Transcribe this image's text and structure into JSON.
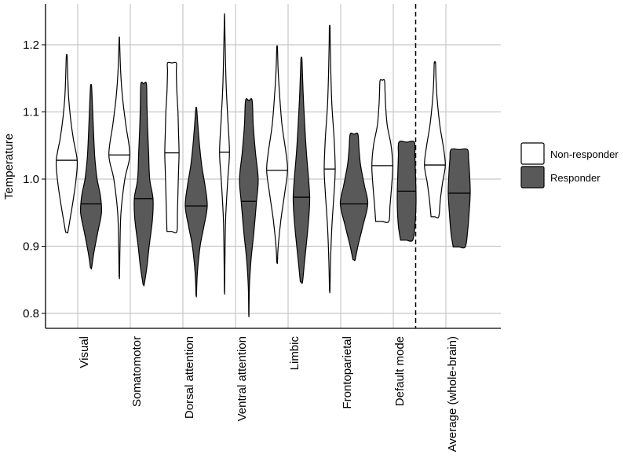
{
  "chart_data": {
    "type": "violin",
    "ylabel": "Temperature",
    "xlabel": "",
    "ylim": [
      0.775,
      1.26
    ],
    "yticks": [
      0.8,
      0.9,
      1.0,
      1.1,
      1.2
    ],
    "ytick_labels": [
      "0.8",
      "0.9",
      "1.0",
      "1.1",
      "1.2"
    ],
    "grid": true,
    "legend_position": "right",
    "series": [
      {
        "name": "Non-responder",
        "color": "#ffffff"
      },
      {
        "name": "Responder",
        "color": "#595959"
      }
    ],
    "separator_after_category": "Default mode",
    "categories": [
      {
        "label": "Visual",
        "non_responder": {
          "min": 0.921,
          "max": 1.183,
          "median": 1.028,
          "density": [
            [
              0.921,
              0.1
            ],
            [
              0.94,
              0.3
            ],
            [
              0.97,
              0.6
            ],
            [
              1.0,
              0.85
            ],
            [
              1.028,
              0.95
            ],
            [
              1.06,
              0.6
            ],
            [
              1.09,
              0.35
            ],
            [
              1.12,
              0.18
            ],
            [
              1.15,
              0.1
            ],
            [
              1.183,
              0.04
            ]
          ]
        },
        "responder": {
          "min": 0.868,
          "max": 1.138,
          "median": 0.963,
          "density": [
            [
              0.868,
              0.05
            ],
            [
              0.89,
              0.25
            ],
            [
              0.92,
              0.6
            ],
            [
              0.95,
              0.95
            ],
            [
              0.975,
              0.85
            ],
            [
              1.0,
              0.55
            ],
            [
              1.03,
              0.35
            ],
            [
              1.06,
              0.25
            ],
            [
              1.1,
              0.15
            ],
            [
              1.138,
              0.05
            ]
          ]
        }
      },
      {
        "label": "Somatomotor",
        "non_responder": {
          "min": 0.855,
          "max": 1.208,
          "median": 1.036,
          "density": [
            [
              0.855,
              0.02
            ],
            [
              0.9,
              0.06
            ],
            [
              0.95,
              0.15
            ],
            [
              1.0,
              0.5
            ],
            [
              1.036,
              0.95
            ],
            [
              1.08,
              0.6
            ],
            [
              1.12,
              0.3
            ],
            [
              1.16,
              0.12
            ],
            [
              1.208,
              0.02
            ]
          ]
        },
        "responder": {
          "min": 0.843,
          "max": 1.142,
          "median": 0.971,
          "density": [
            [
              0.843,
              0.05
            ],
            [
              0.87,
              0.3
            ],
            [
              0.9,
              0.5
            ],
            [
              0.94,
              0.8
            ],
            [
              0.971,
              0.85
            ],
            [
              1.0,
              0.55
            ],
            [
              1.04,
              0.45
            ],
            [
              1.08,
              0.35
            ],
            [
              1.11,
              0.3
            ],
            [
              1.142,
              0.25
            ]
          ]
        }
      },
      {
        "label": "Dorsal attention",
        "non_responder": {
          "min": 0.922,
          "max": 1.173,
          "median": 1.039,
          "density": [
            [
              0.922,
              0.45
            ],
            [
              0.95,
              0.5
            ],
            [
              0.98,
              0.55
            ],
            [
              1.01,
              0.6
            ],
            [
              1.039,
              0.65
            ],
            [
              1.07,
              0.6
            ],
            [
              1.1,
              0.55
            ],
            [
              1.13,
              0.45
            ],
            [
              1.16,
              0.4
            ],
            [
              1.173,
              0.4
            ]
          ]
        },
        "responder": {
          "min": 0.827,
          "max": 1.105,
          "median": 0.96,
          "density": [
            [
              0.827,
              0.02
            ],
            [
              0.86,
              0.1
            ],
            [
              0.9,
              0.35
            ],
            [
              0.93,
              0.7
            ],
            [
              0.96,
              1.0
            ],
            [
              0.99,
              0.8
            ],
            [
              1.02,
              0.5
            ],
            [
              1.05,
              0.3
            ],
            [
              1.08,
              0.15
            ],
            [
              1.105,
              0.04
            ]
          ]
        }
      },
      {
        "label": "Ventral attention",
        "non_responder": {
          "min": 0.832,
          "max": 1.243,
          "median": 1.04,
          "density": [
            [
              0.832,
              0.01
            ],
            [
              0.88,
              0.04
            ],
            [
              0.94,
              0.1
            ],
            [
              1.0,
              0.3
            ],
            [
              1.04,
              0.45
            ],
            [
              1.09,
              0.3
            ],
            [
              1.14,
              0.15
            ],
            [
              1.2,
              0.06
            ],
            [
              1.243,
              0.01
            ]
          ]
        },
        "responder": {
          "min": 0.798,
          "max": 1.117,
          "median": 0.967,
          "density": [
            [
              0.798,
              0.01
            ],
            [
              0.84,
              0.05
            ],
            [
              0.88,
              0.2
            ],
            [
              0.92,
              0.45
            ],
            [
              0.967,
              0.7
            ],
            [
              1.0,
              0.85
            ],
            [
              1.04,
              0.6
            ],
            [
              1.08,
              0.4
            ],
            [
              1.117,
              0.3
            ]
          ]
        }
      },
      {
        "label": "Limbic",
        "non_responder": {
          "min": 0.876,
          "max": 1.196,
          "median": 1.013,
          "density": [
            [
              0.876,
              0.03
            ],
            [
              0.9,
              0.1
            ],
            [
              0.94,
              0.35
            ],
            [
              0.98,
              0.7
            ],
            [
              1.013,
              0.95
            ],
            [
              1.04,
              0.8
            ],
            [
              1.08,
              0.45
            ],
            [
              1.12,
              0.25
            ],
            [
              1.16,
              0.1
            ],
            [
              1.196,
              0.03
            ]
          ]
        },
        "responder": {
          "min": 0.847,
          "max": 1.178,
          "median": 0.973,
          "density": [
            [
              0.847,
              0.1
            ],
            [
              0.88,
              0.3
            ],
            [
              0.92,
              0.55
            ],
            [
              0.95,
              0.7
            ],
            [
              0.973,
              0.75
            ],
            [
              1.0,
              0.65
            ],
            [
              1.04,
              0.45
            ],
            [
              1.08,
              0.3
            ],
            [
              1.13,
              0.15
            ],
            [
              1.178,
              0.05
            ]
          ]
        }
      },
      {
        "label": "Frontoparietal",
        "non_responder": {
          "min": 0.834,
          "max": 1.227,
          "median": 1.015,
          "density": [
            [
              0.834,
              0.02
            ],
            [
              0.88,
              0.08
            ],
            [
              0.93,
              0.2
            ],
            [
              0.98,
              0.4
            ],
            [
              1.015,
              0.5
            ],
            [
              1.06,
              0.4
            ],
            [
              1.11,
              0.2
            ],
            [
              1.16,
              0.1
            ],
            [
              1.2,
              0.05
            ],
            [
              1.227,
              0.03
            ]
          ]
        },
        "responder": {
          "min": 0.88,
          "max": 1.067,
          "median": 0.963,
          "density": [
            [
              0.88,
              0.1
            ],
            [
              0.9,
              0.35
            ],
            [
              0.93,
              0.8
            ],
            [
              0.963,
              1.25
            ],
            [
              0.99,
              0.95
            ],
            [
              1.02,
              0.6
            ],
            [
              1.045,
              0.45
            ],
            [
              1.067,
              0.35
            ]
          ]
        }
      },
      {
        "label": "Default mode",
        "non_responder": {
          "min": 0.937,
          "max": 1.147,
          "median": 1.02,
          "density": [
            [
              0.937,
              0.6
            ],
            [
              0.96,
              0.7
            ],
            [
              0.99,
              0.85
            ],
            [
              1.02,
              0.95
            ],
            [
              1.05,
              0.8
            ],
            [
              1.08,
              0.45
            ],
            [
              1.11,
              0.3
            ],
            [
              1.13,
              0.25
            ],
            [
              1.147,
              0.2
            ]
          ]
        },
        "responder": {
          "min": 0.909,
          "max": 1.055,
          "median": 0.982,
          "density": [
            [
              0.909,
              0.55
            ],
            [
              0.93,
              0.75
            ],
            [
              0.96,
              0.85
            ],
            [
              0.982,
              0.85
            ],
            [
              1.01,
              0.8
            ],
            [
              1.035,
              0.75
            ],
            [
              1.055,
              0.7
            ]
          ]
        }
      },
      {
        "label": "Average (whole-brain)",
        "non_responder": {
          "min": 0.944,
          "max": 1.173,
          "median": 1.021,
          "density": [
            [
              0.944,
              0.35
            ],
            [
              0.97,
              0.5
            ],
            [
              0.995,
              0.7
            ],
            [
              1.021,
              0.95
            ],
            [
              1.05,
              0.75
            ],
            [
              1.08,
              0.45
            ],
            [
              1.12,
              0.2
            ],
            [
              1.15,
              0.1
            ],
            [
              1.173,
              0.06
            ]
          ]
        },
        "responder": {
          "min": 0.899,
          "max": 1.044,
          "median": 0.979,
          "density": [
            [
              0.899,
              0.55
            ],
            [
              0.92,
              0.75
            ],
            [
              0.95,
              0.9
            ],
            [
              0.979,
              1.0
            ],
            [
              1.005,
              0.95
            ],
            [
              1.03,
              0.85
            ],
            [
              1.044,
              0.75
            ]
          ]
        }
      }
    ]
  }
}
